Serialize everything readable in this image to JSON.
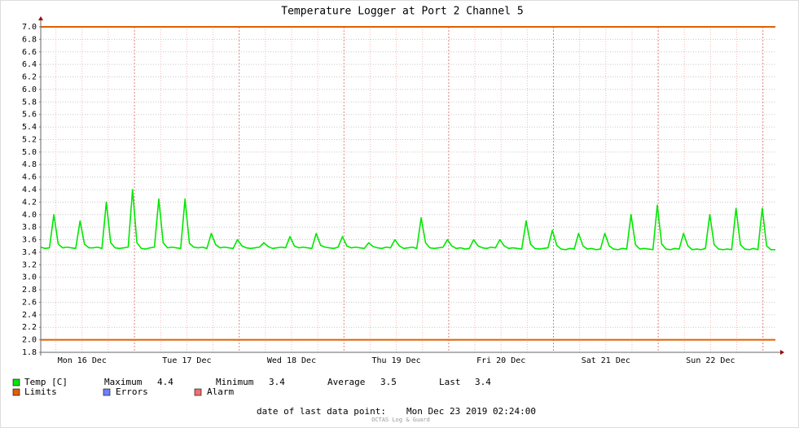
{
  "chart_data": {
    "type": "line",
    "title": "Temperature Logger at Port 2 Channel 5",
    "x_labels": [
      "Mon 16 Dec",
      "Tue 17 Dec",
      "Wed 18 Dec",
      "Thu 19 Dec",
      "Fri 20 Dec",
      "Sat 21 Dec",
      "Sun 22 Dec"
    ],
    "ylim": [
      1.8,
      7.0
    ],
    "yticks": [
      1.8,
      {
        "value": 2,
        "label": "2.0"
      },
      2.2,
      2.4,
      2.6,
      2.8,
      {
        "value": 3,
        "label": "3.0"
      },
      3.2,
      3.4,
      3.6,
      3.8,
      {
        "value": 4,
        "label": "4.0"
      },
      4.2,
      4.4,
      4.6,
      4.8,
      {
        "value": 5,
        "label": "5.0"
      },
      5.2,
      5.4,
      5.6,
      5.8,
      {
        "value": 6,
        "label": "6.0"
      },
      6.2,
      6.4,
      6.6,
      6.8,
      {
        "value": 7,
        "label": "7.0"
      }
    ],
    "grid": true,
    "series": [
      {
        "name": "Temp [C]",
        "color": "#00e800",
        "values": [
          3.48,
          3.46,
          3.47,
          4.0,
          3.53,
          3.47,
          3.48,
          3.47,
          3.46,
          3.9,
          3.53,
          3.47,
          3.47,
          3.48,
          3.46,
          4.2,
          3.55,
          3.47,
          3.46,
          3.47,
          3.48,
          4.4,
          3.55,
          3.46,
          3.45,
          3.47,
          3.48,
          4.25,
          3.55,
          3.47,
          3.48,
          3.47,
          3.46,
          4.25,
          3.54,
          3.48,
          3.47,
          3.48,
          3.46,
          3.7,
          3.52,
          3.47,
          3.48,
          3.47,
          3.46,
          3.6,
          3.5,
          3.47,
          3.46,
          3.47,
          3.48,
          3.55,
          3.49,
          3.46,
          3.47,
          3.48,
          3.47,
          3.65,
          3.5,
          3.47,
          3.48,
          3.47,
          3.46,
          3.7,
          3.51,
          3.48,
          3.47,
          3.46,
          3.48,
          3.65,
          3.5,
          3.47,
          3.48,
          3.47,
          3.46,
          3.55,
          3.49,
          3.47,
          3.46,
          3.48,
          3.47,
          3.6,
          3.5,
          3.46,
          3.47,
          3.48,
          3.46,
          3.95,
          3.55,
          3.47,
          3.46,
          3.47,
          3.48,
          3.6,
          3.5,
          3.46,
          3.47,
          3.45,
          3.46,
          3.6,
          3.5,
          3.47,
          3.46,
          3.48,
          3.47,
          3.6,
          3.5,
          3.46,
          3.47,
          3.46,
          3.45,
          3.9,
          3.53,
          3.46,
          3.45,
          3.46,
          3.47,
          3.75,
          3.51,
          3.45,
          3.44,
          3.46,
          3.45,
          3.7,
          3.5,
          3.45,
          3.46,
          3.44,
          3.45,
          3.7,
          3.5,
          3.45,
          3.44,
          3.46,
          3.45,
          4.0,
          3.52,
          3.45,
          3.46,
          3.45,
          3.44,
          4.15,
          3.53,
          3.45,
          3.44,
          3.46,
          3.45,
          3.7,
          3.5,
          3.44,
          3.45,
          3.44,
          3.46,
          4.0,
          3.52,
          3.45,
          3.44,
          3.45,
          3.44,
          4.1,
          3.52,
          3.45,
          3.44,
          3.46,
          3.44,
          4.1,
          3.5,
          3.44,
          3.44
        ]
      },
      {
        "name": "Limits",
        "color": "#e06000",
        "style": "hline",
        "values": [
          7.0,
          2.0
        ]
      }
    ],
    "legend_extra": [
      {
        "name": "Errors",
        "color": "#7080ff"
      },
      {
        "name": "Alarm",
        "color": "#f07070"
      }
    ],
    "stats": [
      {
        "label": "Maximum",
        "value": 4.4
      },
      {
        "label": "Minimum",
        "value": 3.4
      },
      {
        "label": "Average",
        "value": 3.5
      },
      {
        "label": "Last",
        "value": 3.4
      }
    ],
    "footer_label": "date of last data point:",
    "footer_value": "Mon Dec 23 2019 02:24:00",
    "watermark": "OCTAS Log & Guard"
  }
}
